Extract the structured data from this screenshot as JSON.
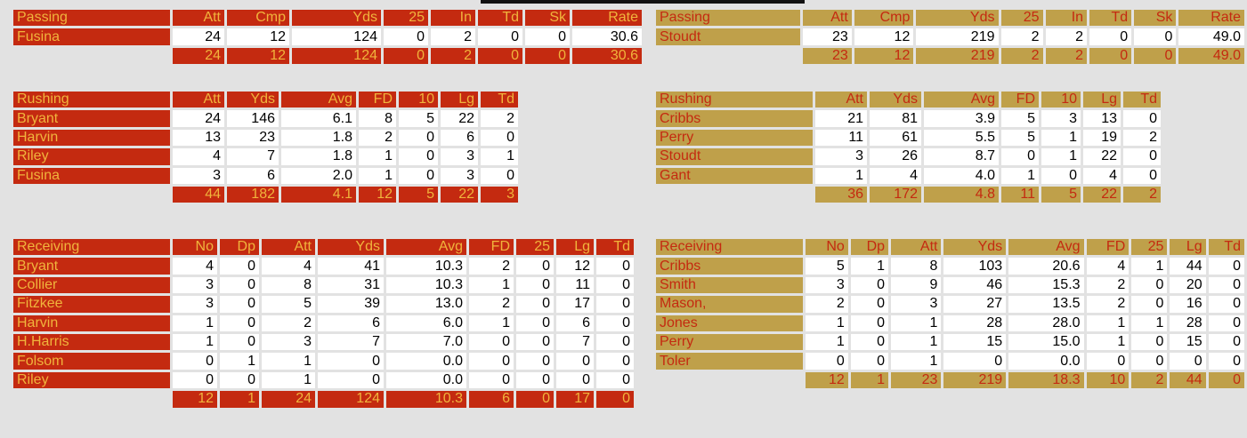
{
  "colors": {
    "red_bg": "#c42a10",
    "red_text": "#f0b43c",
    "gold_bg": "#bfa04a",
    "gold_text": "#c42a10",
    "page_bg": "#e2e2e2"
  },
  "left": {
    "passing": {
      "headers": [
        "Passing",
        "Att",
        "Cmp",
        "Yds",
        "25",
        "In",
        "Td",
        "Sk",
        "Rate"
      ],
      "rows": [
        [
          "Fusina",
          "24",
          "12",
          "124",
          "0",
          "2",
          "0",
          "0",
          "30.6"
        ]
      ],
      "totals": [
        "24",
        "12",
        "124",
        "0",
        "2",
        "0",
        "0",
        "30.6"
      ]
    },
    "rushing": {
      "headers": [
        "Rushing",
        "Att",
        "Yds",
        "Avg",
        "FD",
        "10",
        "Lg",
        "Td"
      ],
      "rows": [
        [
          "Bryant",
          "24",
          "146",
          "6.1",
          "8",
          "5",
          "22",
          "2"
        ],
        [
          "Harvin",
          "13",
          "23",
          "1.8",
          "2",
          "0",
          "6",
          "0"
        ],
        [
          "Riley",
          "4",
          "7",
          "1.8",
          "1",
          "0",
          "3",
          "1"
        ],
        [
          "Fusina",
          "3",
          "6",
          "2.0",
          "1",
          "0",
          "3",
          "0"
        ]
      ],
      "totals": [
        "44",
        "182",
        "4.1",
        "12",
        "5",
        "22",
        "3"
      ]
    },
    "receiving": {
      "headers": [
        "Receiving",
        "No",
        "Dp",
        "Att",
        "Yds",
        "Avg",
        "FD",
        "25",
        "Lg",
        "Td"
      ],
      "rows": [
        [
          "Bryant",
          "4",
          "0",
          "4",
          "41",
          "10.3",
          "2",
          "0",
          "12",
          "0"
        ],
        [
          "Collier",
          "3",
          "0",
          "8",
          "31",
          "10.3",
          "1",
          "0",
          "11",
          "0"
        ],
        [
          "Fitzkee",
          "3",
          "0",
          "5",
          "39",
          "13.0",
          "2",
          "0",
          "17",
          "0"
        ],
        [
          "Harvin",
          "1",
          "0",
          "2",
          "6",
          "6.0",
          "1",
          "0",
          "6",
          "0"
        ],
        [
          "H.Harris",
          "1",
          "0",
          "3",
          "7",
          "7.0",
          "0",
          "0",
          "7",
          "0"
        ],
        [
          "Folsom",
          "0",
          "1",
          "1",
          "0",
          "0.0",
          "0",
          "0",
          "0",
          "0"
        ],
        [
          "Riley",
          "0",
          "0",
          "1",
          "0",
          "0.0",
          "0",
          "0",
          "0",
          "0"
        ]
      ],
      "totals": [
        "12",
        "1",
        "24",
        "124",
        "10.3",
        "6",
        "0",
        "17",
        "0"
      ]
    }
  },
  "right": {
    "passing": {
      "headers": [
        "Passing",
        "Att",
        "Cmp",
        "Yds",
        "25",
        "In",
        "Td",
        "Sk",
        "Rate"
      ],
      "rows": [
        [
          "Stoudt",
          "23",
          "12",
          "219",
          "2",
          "2",
          "0",
          "0",
          "49.0"
        ]
      ],
      "totals": [
        "23",
        "12",
        "219",
        "2",
        "2",
        "0",
        "0",
        "49.0"
      ]
    },
    "rushing": {
      "headers": [
        "Rushing",
        "Att",
        "Yds",
        "Avg",
        "FD",
        "10",
        "Lg",
        "Td"
      ],
      "rows": [
        [
          "Cribbs",
          "21",
          "81",
          "3.9",
          "5",
          "3",
          "13",
          "0"
        ],
        [
          "Perry",
          "11",
          "61",
          "5.5",
          "5",
          "1",
          "19",
          "2"
        ],
        [
          "Stoudt",
          "3",
          "26",
          "8.7",
          "0",
          "1",
          "22",
          "0"
        ],
        [
          "Gant",
          "1",
          "4",
          "4.0",
          "1",
          "0",
          "4",
          "0"
        ]
      ],
      "totals": [
        "36",
        "172",
        "4.8",
        "11",
        "5",
        "22",
        "2"
      ]
    },
    "receiving": {
      "headers": [
        "Receiving",
        "No",
        "Dp",
        "Att",
        "Yds",
        "Avg",
        "FD",
        "25",
        "Lg",
        "Td"
      ],
      "rows": [
        [
          "Cribbs",
          "5",
          "1",
          "8",
          "103",
          "20.6",
          "4",
          "1",
          "44",
          "0"
        ],
        [
          "Smith",
          "3",
          "0",
          "9",
          "46",
          "15.3",
          "2",
          "0",
          "20",
          "0"
        ],
        [
          "Mason,",
          "2",
          "0",
          "3",
          "27",
          "13.5",
          "2",
          "0",
          "16",
          "0"
        ],
        [
          "Jones",
          "1",
          "0",
          "1",
          "28",
          "28.0",
          "1",
          "1",
          "28",
          "0"
        ],
        [
          "Perry",
          "1",
          "0",
          "1",
          "15",
          "15.0",
          "1",
          "0",
          "15",
          "0"
        ],
        [
          "Toler",
          "0",
          "0",
          "1",
          "0",
          "0.0",
          "0",
          "0",
          "0",
          "0"
        ]
      ],
      "totals": [
        "12",
        "1",
        "23",
        "219",
        "18.3",
        "10",
        "2",
        "44",
        "0"
      ]
    }
  }
}
